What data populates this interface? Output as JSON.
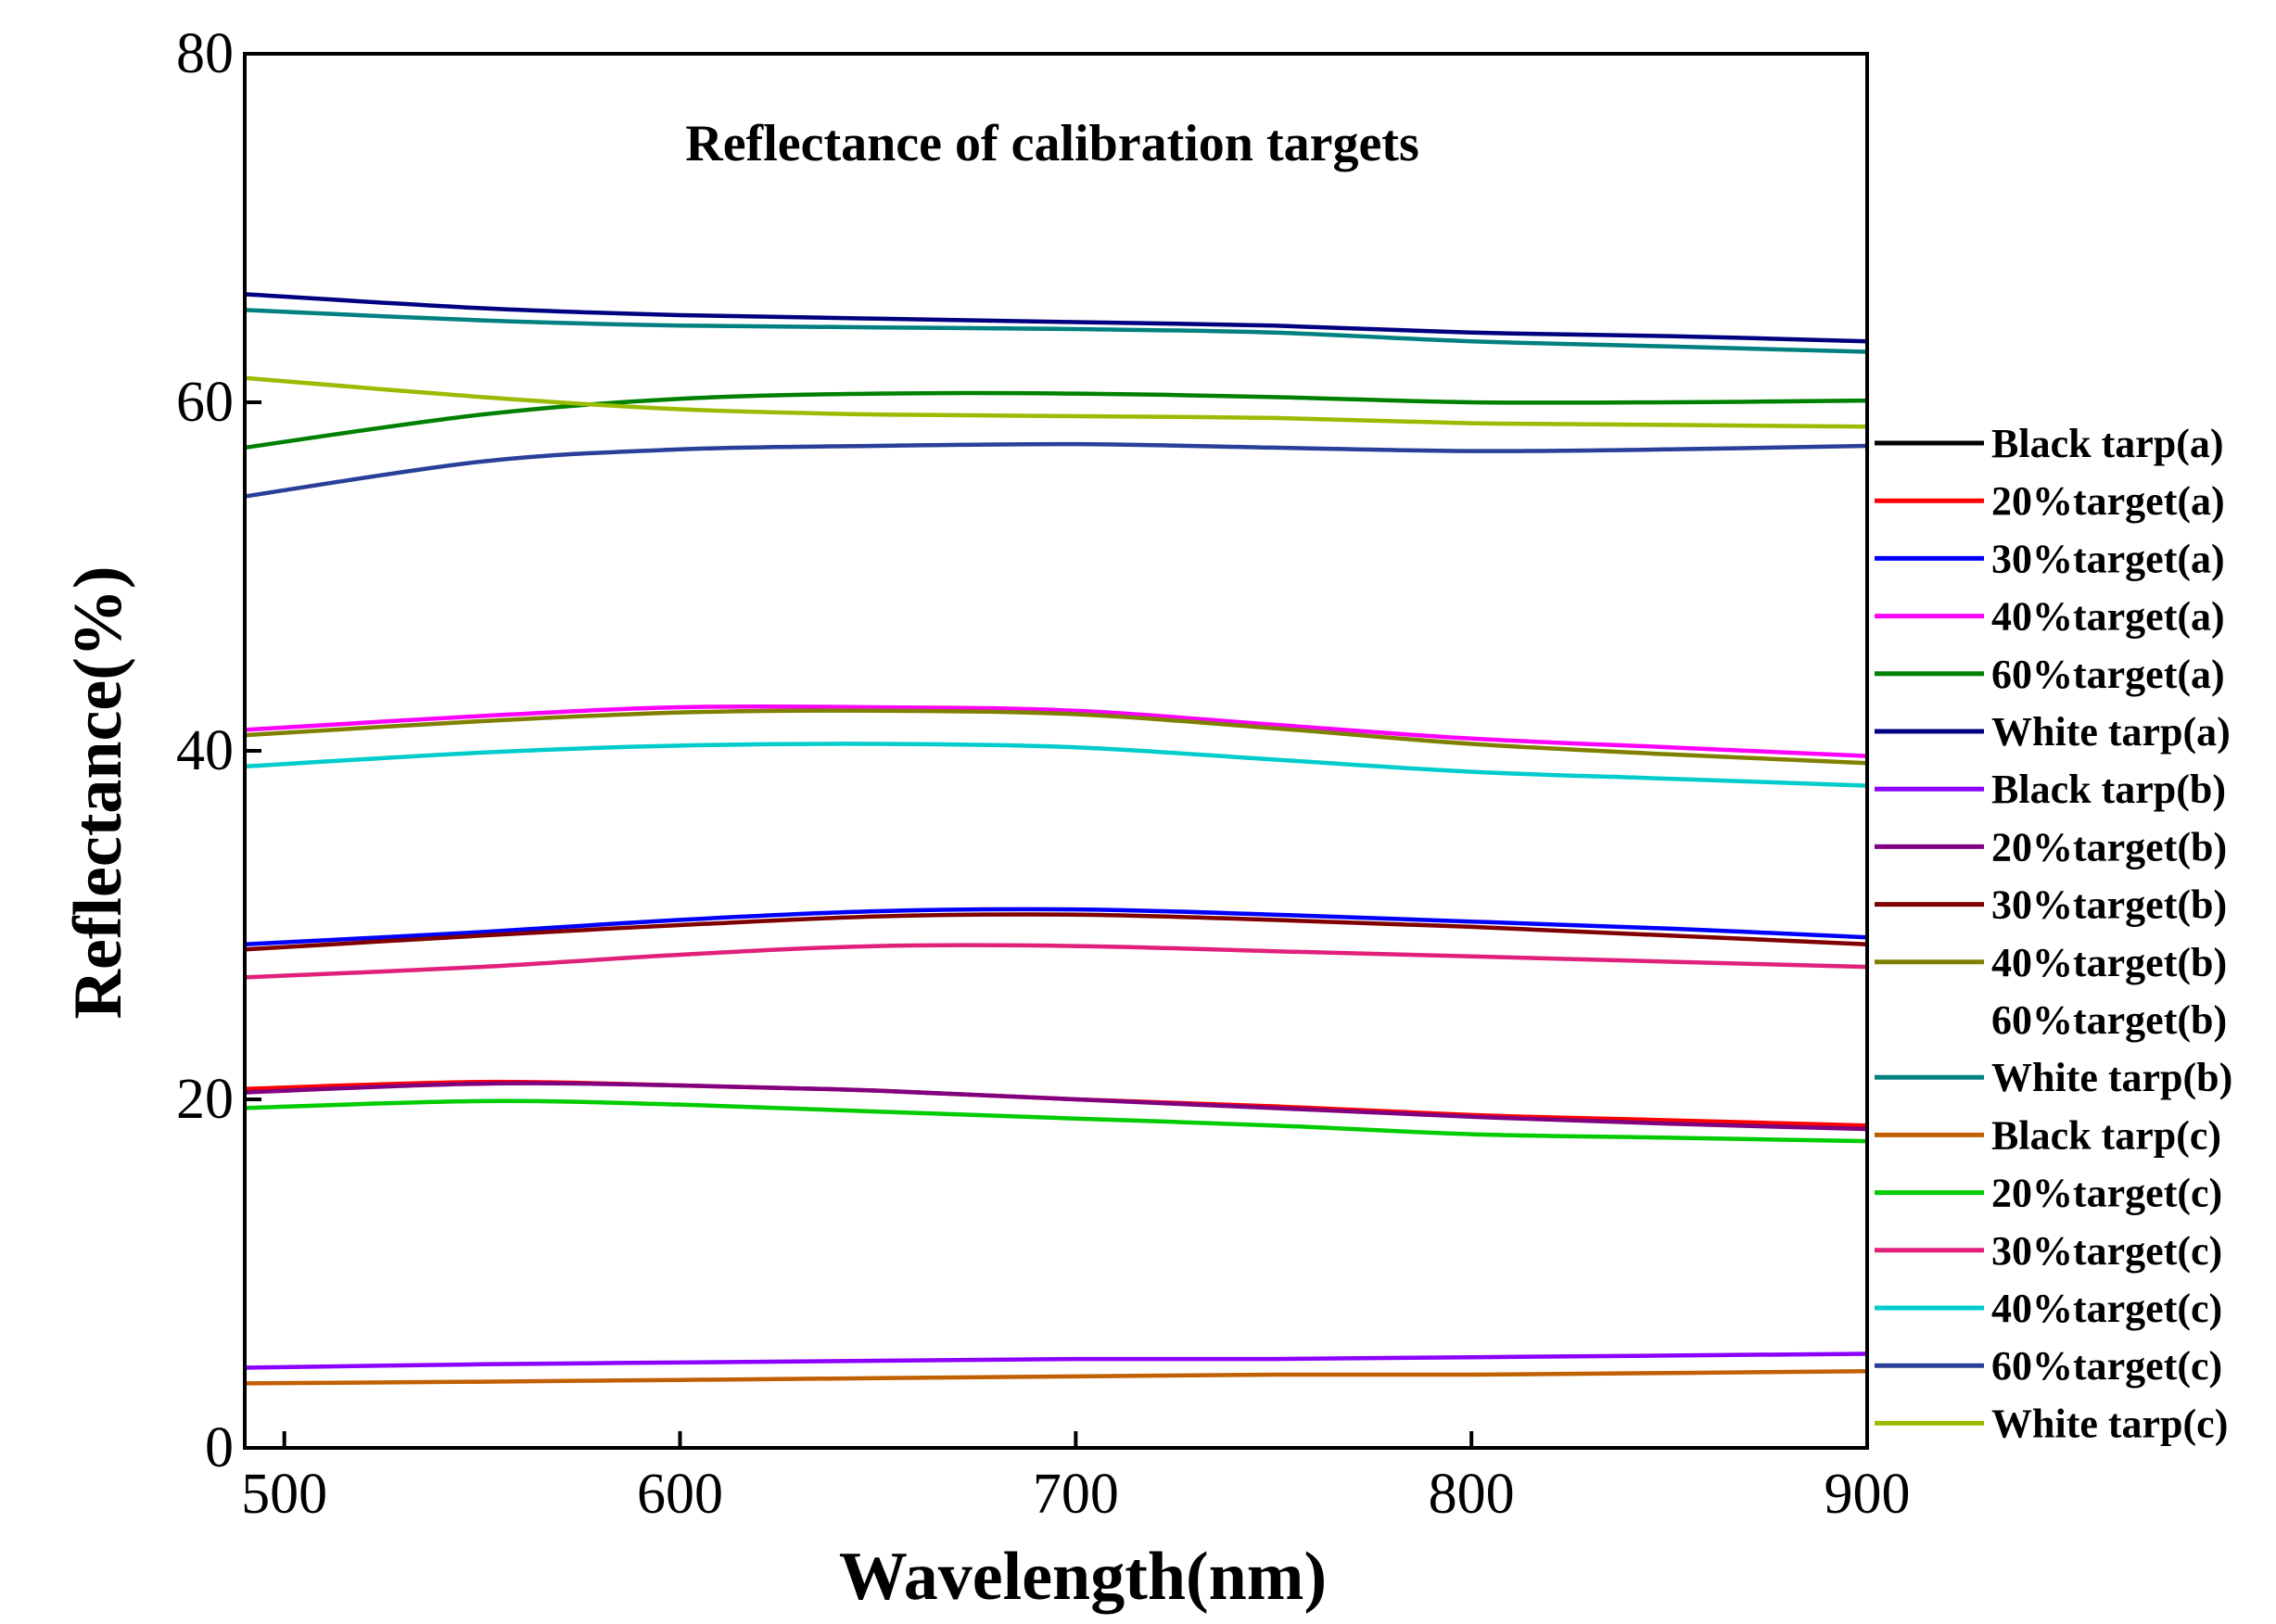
{
  "chart_data": {
    "type": "line",
    "title": "Reflectance of calibration targets",
    "xlabel": "Wavelength(nm)",
    "ylabel": "Reflectance(%)",
    "xlim": [
      490,
      900
    ],
    "ylim": [
      0,
      80
    ],
    "x_ticks": [
      500,
      600,
      700,
      800,
      900
    ],
    "y_ticks": [
      0,
      20,
      40,
      60,
      80
    ],
    "grid": false,
    "legend_position": "right",
    "x": [
      490,
      550,
      600,
      650,
      700,
      750,
      800,
      850,
      900
    ],
    "series": [
      {
        "name": "Black tarp(a)",
        "color": "#000000",
        "values": null
      },
      {
        "name": "20%target(a)",
        "color": "#ff0000",
        "values": [
          20.6,
          21.0,
          20.8,
          20.5,
          20.0,
          19.6,
          19.1,
          18.8,
          18.5
        ]
      },
      {
        "name": "30%target(a)",
        "color": "#0000ff",
        "values": [
          28.9,
          29.6,
          30.3,
          30.8,
          30.9,
          30.6,
          30.2,
          29.8,
          29.3
        ]
      },
      {
        "name": "40%target(a)",
        "color": "#ff00ff",
        "values": [
          41.2,
          42.0,
          42.5,
          42.5,
          42.3,
          41.5,
          40.7,
          40.2,
          39.7
        ]
      },
      {
        "name": "60%target(a)",
        "color": "#008000",
        "values": [
          57.4,
          59.3,
          60.2,
          60.5,
          60.5,
          60.3,
          60.0,
          60.0,
          60.1
        ]
      },
      {
        "name": "White tarp(a)",
        "color": "#000080",
        "values": [
          66.2,
          65.4,
          65.0,
          64.8,
          64.6,
          64.4,
          64.0,
          63.8,
          63.5
        ]
      },
      {
        "name": "Black tarp(b)",
        "color": "#8b00ff",
        "values": [
          4.6,
          4.8,
          4.9,
          5.0,
          5.1,
          5.1,
          5.2,
          5.3,
          5.4
        ]
      },
      {
        "name": "20%target(b)",
        "color": "#800080",
        "values": [
          20.4,
          20.9,
          20.8,
          20.5,
          20.0,
          19.5,
          19.0,
          18.6,
          18.3
        ]
      },
      {
        "name": "30%target(b)",
        "color": "#800000",
        "values": [
          28.6,
          29.4,
          30.0,
          30.5,
          30.6,
          30.3,
          29.9,
          29.4,
          28.9
        ]
      },
      {
        "name": "40%target(b)",
        "color": "#808000",
        "values": [
          40.9,
          41.7,
          42.2,
          42.3,
          42.1,
          41.3,
          40.4,
          39.8,
          39.3
        ]
      },
      {
        "name": "60%target(b)",
        "color": "#ffffff",
        "values": null
      },
      {
        "name": "White tarp(b)",
        "color": "#008080",
        "values": [
          65.3,
          64.7,
          64.4,
          64.3,
          64.2,
          64.0,
          63.5,
          63.2,
          62.9
        ]
      },
      {
        "name": "Black tarp(c)",
        "color": "#c06000",
        "values": [
          3.7,
          3.8,
          3.9,
          4.0,
          4.1,
          4.2,
          4.2,
          4.3,
          4.4
        ]
      },
      {
        "name": "20%target(c)",
        "color": "#00cc00",
        "values": [
          19.5,
          19.9,
          19.7,
          19.3,
          18.9,
          18.5,
          18.0,
          17.8,
          17.6
        ]
      },
      {
        "name": "30%target(c)",
        "color": "#e0207a",
        "values": [
          27.0,
          27.6,
          28.3,
          28.8,
          28.8,
          28.5,
          28.2,
          27.9,
          27.6
        ]
      },
      {
        "name": "40%target(c)",
        "color": "#00cccc",
        "values": [
          39.1,
          39.9,
          40.3,
          40.4,
          40.2,
          39.5,
          38.8,
          38.4,
          38.0
        ]
      },
      {
        "name": "60%target(c)",
        "color": "#2a3f99",
        "values": [
          54.6,
          56.6,
          57.3,
          57.5,
          57.6,
          57.4,
          57.2,
          57.3,
          57.5
        ]
      },
      {
        "name": "White tarp(c)",
        "color": "#99bb00",
        "values": [
          61.4,
          60.3,
          59.6,
          59.3,
          59.2,
          59.1,
          58.8,
          58.7,
          58.6
        ]
      }
    ]
  }
}
